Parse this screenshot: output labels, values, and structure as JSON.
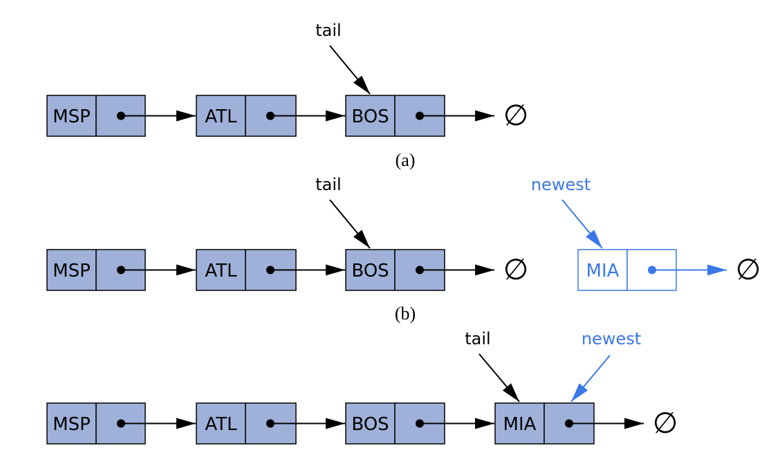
{
  "colors": {
    "node_fill": "#9fb1d9",
    "ink": "#000000",
    "accent": "#3a78e8"
  },
  "null_symbol": "∅",
  "panels": [
    {
      "caption": "(a)",
      "nodes": [
        "MSP",
        "ATL",
        "BOS"
      ],
      "pointers": [
        {
          "label": "tail",
          "target": "BOS"
        }
      ],
      "detached": null
    },
    {
      "caption": "(b)",
      "nodes": [
        "MSP",
        "ATL",
        "BOS"
      ],
      "pointers": [
        {
          "label": "tail",
          "target": "BOS"
        }
      ],
      "detached": {
        "element": "MIA",
        "pointer_label": "newest"
      }
    },
    {
      "caption": "",
      "nodes": [
        "MSP",
        "ATL",
        "BOS",
        "MIA"
      ],
      "pointers": [
        {
          "label": "tail",
          "target": "MIA"
        },
        {
          "label": "newest",
          "target": "MIA"
        }
      ],
      "detached": null
    }
  ]
}
